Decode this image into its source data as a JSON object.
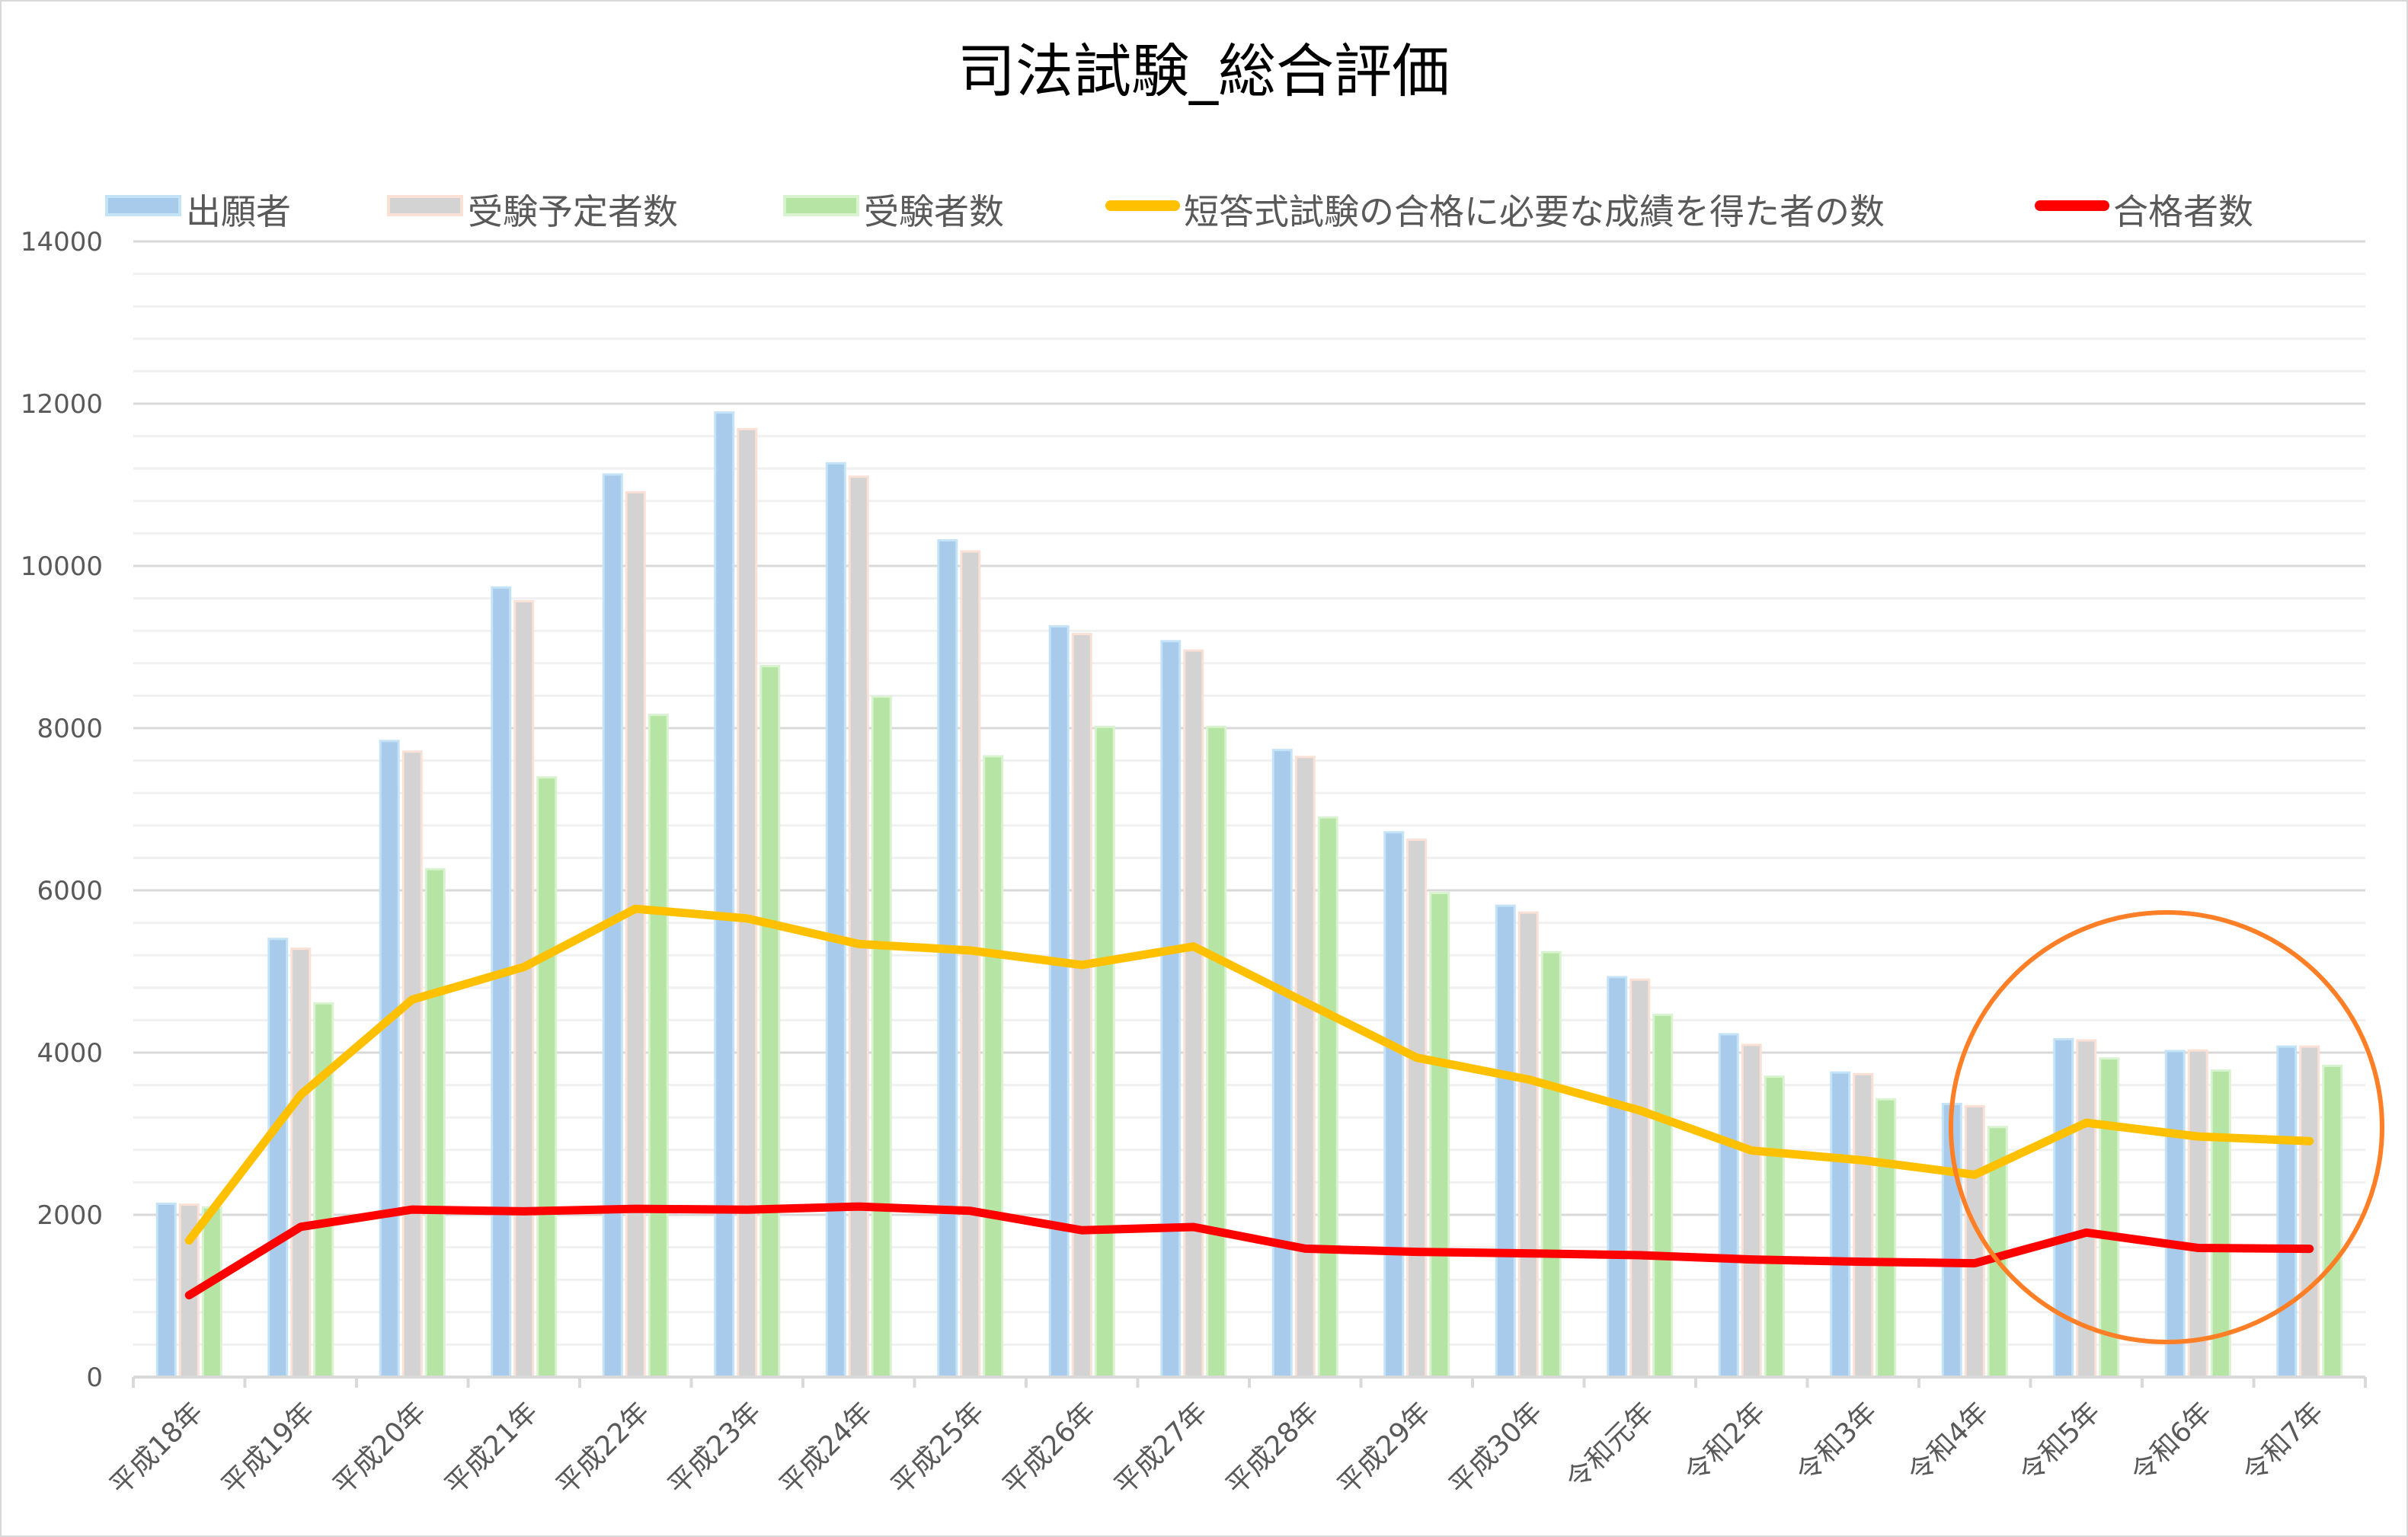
{
  "chart_data": {
    "type": "bar",
    "title": "司法試験_総合評価",
    "xlabel": "",
    "ylabel": "",
    "ylim": [
      0,
      14000
    ],
    "yticks": [
      0,
      2000,
      4000,
      6000,
      8000,
      10000,
      12000,
      14000
    ],
    "grid": true,
    "legend_position": "top",
    "categories": [
      "平成18年",
      "平成19年",
      "平成20年",
      "平成21年",
      "平成22年",
      "平成23年",
      "平成24年",
      "平成25年",
      "平成26年",
      "平成27年",
      "平成28年",
      "平成29年",
      "平成30年",
      "令和元年",
      "令和2年",
      "令和3年",
      "令和4年",
      "令和5年",
      "令和6年",
      "令和7年"
    ],
    "series": [
      {
        "name": "出願者",
        "kind": "bar",
        "color": "#a9cbeb",
        "values": [
          2137,
          5401,
          7842,
          9734,
          11127,
          11891,
          11265,
          10315,
          9255,
          9072,
          7730,
          6716,
          5811,
          4930,
          4226,
          3754,
          3367,
          4165,
          4019,
          4074
        ]
      },
      {
        "name": "受験予定者数",
        "kind": "bar",
        "color": "#d3d3d3",
        "values": [
          2125,
          5280,
          7710,
          9564,
          10908,
          11686,
          11100,
          10178,
          9159,
          8957,
          7644,
          6624,
          5726,
          4899,
          4095,
          3734,
          3339,
          4150,
          4026,
          4074
        ]
      },
      {
        "name": "受験者数",
        "kind": "bar",
        "color": "#b5e4a4",
        "values": [
          2091,
          4607,
          6261,
          7392,
          8163,
          8765,
          8387,
          7653,
          8015,
          8016,
          6899,
          5967,
          5238,
          4466,
          3703,
          3424,
          3082,
          3928,
          3779,
          3837
        ]
      },
      {
        "name": "短答式試験の合格に必要な成績を得た者の数",
        "kind": "line",
        "color": "#ffc000",
        "values": [
          1684,
          3479,
          4654,
          5055,
          5773,
          5654,
          5339,
          5259,
          5080,
          5308,
          4621,
          3937,
          3669,
          3287,
          2793,
          2672,
          2494,
          3135,
          2966,
          2908
        ]
      },
      {
        "name": "合格者数",
        "kind": "line",
        "color": "#ff0000",
        "values": [
          1009,
          1851,
          2065,
          2043,
          2074,
          2063,
          2102,
          2049,
          1810,
          1850,
          1583,
          1543,
          1525,
          1502,
          1450,
          1421,
          1403,
          1781,
          1592,
          1581
        ]
      }
    ],
    "annotation": {
      "shape": "ellipse",
      "color": "#ff7f27",
      "highlights": [
        "令和5年",
        "令和6年",
        "令和7年"
      ]
    }
  }
}
